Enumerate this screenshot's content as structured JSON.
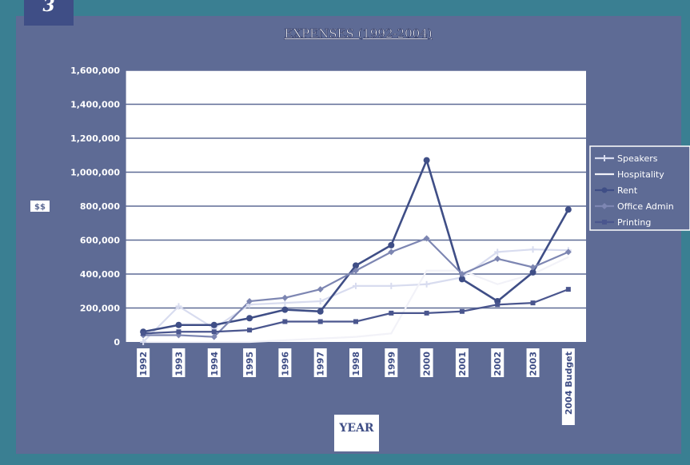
{
  "badge": {
    "number": "3"
  },
  "colors": {
    "frame": "#3a7f92",
    "panel": "#5e6b95",
    "badge": "#3f4e86",
    "plot": "#ffffff",
    "gridline": "#5e6b95",
    "axis_text": "#ffffff"
  },
  "chart_data": {
    "type": "line",
    "title": "EXPENSES (1992-2004)",
    "xlabel": "YEAR",
    "ylabel": "$$",
    "categories": [
      "1992",
      "1993",
      "1994",
      "1995",
      "1996",
      "1997",
      "1998",
      "1999",
      "2000",
      "2001",
      "2002",
      "2003",
      "2004 Budget"
    ],
    "ylim": [
      0,
      1600000
    ],
    "yticks": [
      0,
      200000,
      400000,
      600000,
      800000,
      1000000,
      1200000,
      1400000,
      1600000
    ],
    "ytick_labels": [
      "0",
      "200,000",
      "400,000",
      "600,000",
      "800,000",
      "1,000,000",
      "1,200,000",
      "1,400,000",
      "1,600,000"
    ],
    "grid": true,
    "legend_position": "right",
    "series": [
      {
        "name": "Speakers",
        "color": "#d8dcef",
        "marker": "cross",
        "values": [
          0,
          210000,
          80000,
          220000,
          230000,
          240000,
          330000,
          330000,
          340000,
          380000,
          530000,
          545000,
          540000
        ]
      },
      {
        "name": "Hospitality",
        "color": "#f2f2f8",
        "marker": "none",
        "values": [
          0,
          0,
          0,
          0,
          10000,
          20000,
          30000,
          50000,
          420000,
          420000,
          340000,
          400000,
          500000
        ]
      },
      {
        "name": "Rent",
        "color": "#3f4e86",
        "marker": "circle",
        "values": [
          60000,
          100000,
          100000,
          140000,
          190000,
          180000,
          450000,
          570000,
          1070000,
          370000,
          240000,
          410000,
          780000
        ]
      },
      {
        "name": "Office Admin",
        "color": "#7d86b2",
        "marker": "diamond",
        "values": [
          40000,
          40000,
          30000,
          240000,
          260000,
          310000,
          420000,
          530000,
          610000,
          400000,
          490000,
          440000,
          530000
        ]
      },
      {
        "name": "Printing",
        "color": "#4a568e",
        "marker": "square",
        "values": [
          50000,
          60000,
          60000,
          70000,
          120000,
          120000,
          120000,
          170000,
          170000,
          180000,
          220000,
          230000,
          310000
        ]
      }
    ]
  }
}
